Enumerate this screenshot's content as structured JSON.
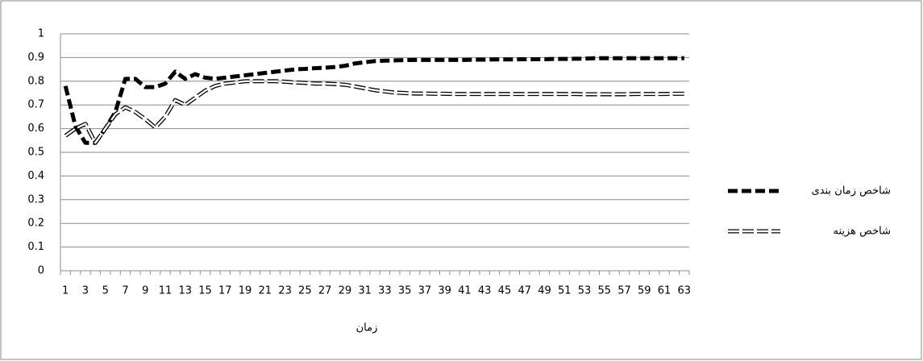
{
  "chart_data": {
    "type": "line",
    "x_label": "زمان",
    "categories": [
      "1",
      null,
      "3",
      null,
      "5",
      null,
      "7",
      null,
      "9",
      null,
      "11",
      null,
      "13",
      null,
      "15",
      null,
      "17",
      null,
      "19",
      null,
      "21",
      null,
      "23",
      null,
      "25",
      null,
      "27",
      null,
      "29",
      null,
      "31",
      null,
      "33",
      null,
      "35",
      null,
      "37",
      null,
      "39",
      null,
      "41",
      null,
      "43",
      null,
      "45",
      null,
      "47",
      null,
      "49",
      null,
      "51",
      null,
      "53",
      null,
      "55",
      null,
      "57",
      null,
      "59",
      null,
      "61",
      null,
      "63"
    ],
    "series": [
      {
        "name": "شاخص زمان بندی",
        "color": "#000000",
        "style": "thick-dashed",
        "values": [
          0.78,
          0.61,
          0.54,
          0.54,
          0.6,
          0.67,
          0.81,
          0.81,
          0.775,
          0.775,
          0.79,
          0.84,
          0.81,
          0.83,
          0.815,
          0.81,
          0.815,
          0.82,
          0.825,
          0.83,
          0.835,
          0.84,
          0.845,
          0.85,
          0.852,
          0.855,
          0.857,
          0.86,
          0.865,
          0.875,
          0.88,
          0.885,
          0.887,
          0.888,
          0.889,
          0.89,
          0.89,
          0.89,
          0.89,
          0.89,
          0.89,
          0.891,
          0.891,
          0.892,
          0.892,
          0.892,
          0.893,
          0.893,
          0.893,
          0.894,
          0.894,
          0.895,
          0.895,
          0.897,
          0.897,
          0.897,
          0.897,
          0.897,
          0.897,
          0.897,
          0.897,
          0.897,
          0.897
        ]
      },
      {
        "name": "شاخص هزینه",
        "color": "#000000",
        "style": "double-dashed",
        "values": [
          0.57,
          0.6,
          0.62,
          0.54,
          0.6,
          0.66,
          0.69,
          0.67,
          0.64,
          0.605,
          0.65,
          0.72,
          0.7,
          0.73,
          0.76,
          0.78,
          0.79,
          0.795,
          0.8,
          0.8,
          0.8,
          0.8,
          0.798,
          0.795,
          0.793,
          0.79,
          0.79,
          0.788,
          0.785,
          0.778,
          0.77,
          0.762,
          0.757,
          0.752,
          0.75,
          0.748,
          0.748,
          0.747,
          0.747,
          0.746,
          0.746,
          0.746,
          0.746,
          0.746,
          0.746,
          0.746,
          0.746,
          0.746,
          0.746,
          0.746,
          0.746,
          0.746,
          0.745,
          0.745,
          0.745,
          0.745,
          0.745,
          0.746,
          0.746,
          0.746,
          0.746,
          0.747,
          0.747
        ]
      }
    ],
    "ylim": [
      0,
      1
    ],
    "yticks": [
      0,
      0.1,
      0.2,
      0.3,
      0.4,
      0.5,
      0.6,
      0.7,
      0.8,
      0.9,
      1
    ],
    "grid": true,
    "legend": "right"
  }
}
